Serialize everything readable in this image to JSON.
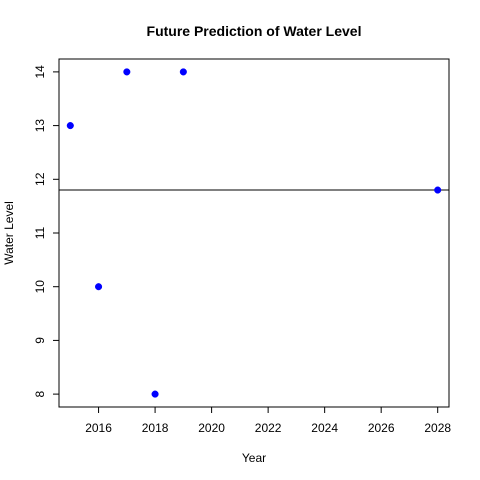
{
  "chart_data": {
    "type": "scatter",
    "title": "Future Prediction of Water Level",
    "xlabel": "Year",
    "ylabel": "Water Level",
    "xlim": [
      2014.6,
      2028.4
    ],
    "ylim": [
      7.76,
      14.24
    ],
    "xticks": [
      2016,
      2018,
      2020,
      2022,
      2024,
      2026,
      2028
    ],
    "yticks": [
      8,
      9,
      10,
      11,
      12,
      13,
      14
    ],
    "grid": false,
    "legend": "none",
    "series": [
      {
        "color": "#0000ff",
        "points": [
          {
            "x": 2015,
            "y": 13
          },
          {
            "x": 2016,
            "y": 10
          },
          {
            "x": 2017,
            "y": 14
          },
          {
            "x": 2018,
            "y": 8
          },
          {
            "x": 2019,
            "y": 14
          },
          {
            "x": 2028,
            "y": 11.8
          }
        ]
      }
    ],
    "hline": {
      "y": 11.8,
      "color": "#000000"
    }
  }
}
